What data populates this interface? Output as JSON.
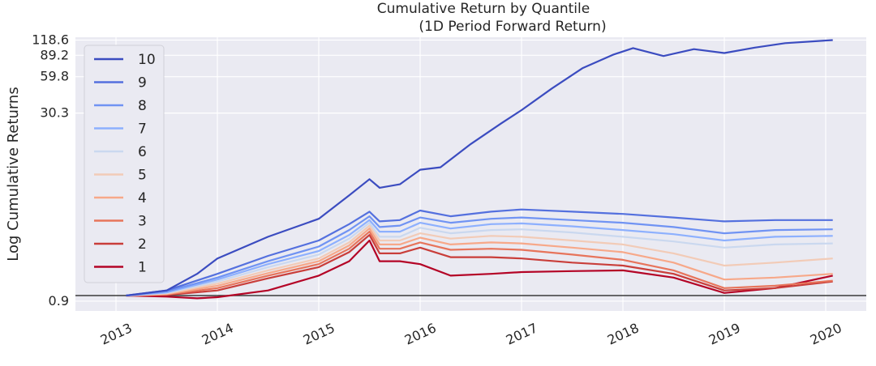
{
  "chart_data": {
    "type": "line",
    "title": "Cumulative Return by Quantile",
    "subtitle": "(1D Period Forward Return)",
    "ylabel": "Log Cumulative Returns",
    "xlabel": "",
    "y_scale": "log",
    "y_ticks": [
      "118.6",
      "89.2",
      "59.8",
      "30.3",
      "0.9"
    ],
    "y_tick_values": [
      118.6,
      89.2,
      59.8,
      30.3,
      0.9
    ],
    "x_ticks": [
      "2013",
      "2014",
      "2015",
      "2016",
      "2017",
      "2018",
      "2019",
      "2020"
    ],
    "x_tick_values": [
      2013,
      2014,
      2015,
      2016,
      2017,
      2018,
      2019,
      2020
    ],
    "xlim": [
      2012.6,
      2020.4
    ],
    "ylim": [
      0.75,
      125
    ],
    "grid": true,
    "legend_position": "upper-left",
    "reference_line": 1.0,
    "series": [
      {
        "name": "10",
        "color": "#3b4cc0",
        "x": [
          2013.1,
          2013.5,
          2013.8,
          2014.0,
          2014.5,
          2015.0,
          2015.3,
          2015.5,
          2015.6,
          2015.8,
          2016.0,
          2016.2,
          2016.5,
          2016.8,
          2017.0,
          2017.3,
          2017.6,
          2017.9,
          2018.1,
          2018.4,
          2018.7,
          2019.0,
          2019.3,
          2019.6,
          2019.9,
          2020.07
        ],
        "y": [
          1.0,
          1.1,
          1.5,
          2.0,
          3.0,
          4.2,
          6.5,
          8.8,
          7.5,
          8.0,
          10.5,
          11.0,
          17.0,
          25.0,
          32.0,
          48.0,
          70.0,
          90.0,
          102.0,
          88.0,
          100.0,
          93.0,
          103.0,
          112.0,
          116.0,
          118.6
        ]
      },
      {
        "name": "9",
        "color": "#5470de",
        "x": [
          2013.1,
          2013.5,
          2014.0,
          2014.5,
          2015.0,
          2015.3,
          2015.5,
          2015.6,
          2015.8,
          2016.0,
          2016.3,
          2016.7,
          2017.0,
          2017.5,
          2018.0,
          2018.5,
          2019.0,
          2019.5,
          2020.07
        ],
        "y": [
          1.0,
          1.1,
          1.5,
          2.1,
          2.8,
          3.8,
          4.8,
          4.0,
          4.1,
          4.9,
          4.4,
          4.8,
          5.0,
          4.8,
          4.6,
          4.3,
          4.0,
          4.1,
          4.1
        ]
      },
      {
        "name": "8",
        "color": "#7093f3",
        "x": [
          2013.1,
          2013.5,
          2014.0,
          2014.5,
          2015.0,
          2015.3,
          2015.5,
          2015.6,
          2015.8,
          2016.0,
          2016.3,
          2016.7,
          2017.0,
          2017.5,
          2018.0,
          2018.5,
          2019.0,
          2019.5,
          2020.07
        ],
        "y": [
          1.0,
          1.08,
          1.4,
          1.9,
          2.5,
          3.4,
          4.4,
          3.6,
          3.7,
          4.3,
          3.9,
          4.2,
          4.3,
          4.1,
          3.9,
          3.6,
          3.2,
          3.4,
          3.45
        ]
      },
      {
        "name": "7",
        "color": "#8db0fe",
        "x": [
          2013.1,
          2013.5,
          2014.0,
          2014.5,
          2015.0,
          2015.3,
          2015.5,
          2015.6,
          2015.8,
          2016.0,
          2016.3,
          2016.7,
          2017.0,
          2017.5,
          2018.0,
          2018.5,
          2019.0,
          2019.5,
          2020.07
        ],
        "y": [
          1.0,
          1.06,
          1.35,
          1.8,
          2.3,
          3.1,
          4.1,
          3.3,
          3.3,
          3.9,
          3.5,
          3.8,
          3.85,
          3.65,
          3.4,
          3.15,
          2.8,
          3.0,
          3.05
        ]
      },
      {
        "name": "6",
        "color": "#cad8ef",
        "x": [
          2013.1,
          2013.5,
          2014.0,
          2014.5,
          2015.0,
          2015.3,
          2015.5,
          2015.6,
          2015.8,
          2016.0,
          2016.3,
          2016.7,
          2017.0,
          2017.5,
          2018.0,
          2018.5,
          2019.0,
          2019.5,
          2020.07
        ],
        "y": [
          1.0,
          1.05,
          1.3,
          1.7,
          2.15,
          2.9,
          3.9,
          3.0,
          3.0,
          3.55,
          3.2,
          3.4,
          3.45,
          3.25,
          3.0,
          2.75,
          2.45,
          2.6,
          2.65
        ]
      },
      {
        "name": "5",
        "color": "#f2cbb7",
        "x": [
          2013.1,
          2013.5,
          2014.0,
          2014.5,
          2015.0,
          2015.3,
          2015.5,
          2015.6,
          2015.8,
          2016.0,
          2016.3,
          2016.7,
          2017.0,
          2017.5,
          2018.0,
          2018.5,
          2019.0,
          2019.5,
          2020.07
        ],
        "y": [
          1.0,
          1.04,
          1.25,
          1.6,
          2.0,
          2.7,
          3.7,
          2.8,
          2.8,
          3.2,
          2.9,
          3.05,
          3.0,
          2.8,
          2.6,
          2.2,
          1.75,
          1.85,
          2.0
        ]
      },
      {
        "name": "4",
        "color": "#f7a889",
        "x": [
          2013.1,
          2013.5,
          2014.0,
          2014.5,
          2015.0,
          2015.3,
          2015.5,
          2015.6,
          2015.8,
          2016.0,
          2016.3,
          2016.7,
          2017.0,
          2017.5,
          2018.0,
          2018.5,
          2019.0,
          2019.5,
          2020.07
        ],
        "y": [
          1.0,
          1.03,
          1.2,
          1.52,
          1.9,
          2.55,
          3.5,
          2.6,
          2.6,
          2.95,
          2.6,
          2.7,
          2.65,
          2.45,
          2.25,
          1.85,
          1.35,
          1.4,
          1.5
        ]
      },
      {
        "name": "3",
        "color": "#e7745b",
        "x": [
          2013.1,
          2013.5,
          2014.0,
          2014.5,
          2015.0,
          2015.3,
          2015.5,
          2015.6,
          2015.8,
          2016.0,
          2016.3,
          2016.7,
          2017.0,
          2017.5,
          2018.0,
          2018.5,
          2019.0,
          2019.5,
          2020.07
        ],
        "y": [
          1.0,
          1.02,
          1.15,
          1.45,
          1.8,
          2.4,
          3.3,
          2.4,
          2.4,
          2.7,
          2.35,
          2.4,
          2.35,
          2.15,
          1.95,
          1.6,
          1.15,
          1.2,
          1.32
        ]
      },
      {
        "name": "2",
        "color": "#c93e3a",
        "x": [
          2013.1,
          2013.5,
          2014.0,
          2014.5,
          2015.0,
          2015.3,
          2015.5,
          2015.6,
          2015.8,
          2016.0,
          2016.3,
          2016.7,
          2017.0,
          2017.5,
          2018.0,
          2018.5,
          2019.0,
          2019.5,
          2020.07
        ],
        "y": [
          1.0,
          1.01,
          1.1,
          1.38,
          1.7,
          2.25,
          3.1,
          2.2,
          2.2,
          2.45,
          2.05,
          2.05,
          2.0,
          1.85,
          1.75,
          1.5,
          1.1,
          1.15,
          1.3
        ]
      },
      {
        "name": "1",
        "color": "#b40426",
        "x": [
          2013.1,
          2013.5,
          2013.8,
          2014.0,
          2014.5,
          2015.0,
          2015.3,
          2015.5,
          2015.6,
          2015.8,
          2016.0,
          2016.3,
          2016.7,
          2017.0,
          2017.5,
          2018.0,
          2018.5,
          2019.0,
          2019.5,
          2020.07
        ],
        "y": [
          1.0,
          0.98,
          0.95,
          0.97,
          1.1,
          1.45,
          1.9,
          2.8,
          1.9,
          1.9,
          1.8,
          1.45,
          1.5,
          1.55,
          1.58,
          1.6,
          1.4,
          1.05,
          1.15,
          1.45
        ]
      }
    ]
  }
}
